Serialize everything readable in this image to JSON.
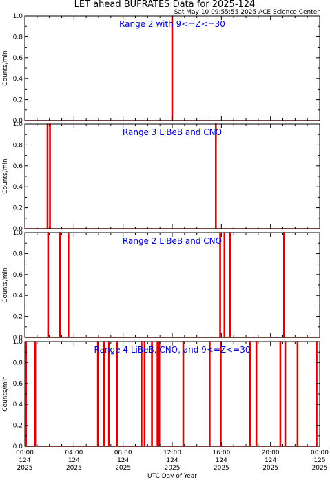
{
  "title": "LET ahead BUFRATES Data for 2025-124",
  "timestamp": "Sat May 10 09:55:55 2025 ACE Science Center",
  "xlabel": "UTC Day of Year",
  "colors": {
    "series": "#dd0000",
    "panel_label": "#0000cc",
    "axes": "#000000"
  },
  "chart_data": [
    {
      "type": "line",
      "label": "Range 2 with 9<=Z<=30",
      "ylabel": "Counts/min",
      "ylim": [
        0,
        1
      ],
      "xlim_hours": [
        0,
        24
      ],
      "y_ticks": [
        "0.0",
        "0.2",
        "0.4",
        "0.6",
        "0.8",
        "1.0"
      ],
      "spike_hours": [
        12.0
      ]
    },
    {
      "type": "line",
      "label": "Range 3 LiBeB and CNO",
      "ylabel": "Counts/min",
      "ylim": [
        0,
        1
      ],
      "xlim_hours": [
        0,
        24
      ],
      "y_ticks": [
        "0.0",
        "0.2",
        "0.4",
        "0.6",
        "0.8",
        "1.0"
      ],
      "spike_hours": [
        1.85,
        2.05,
        15.55
      ]
    },
    {
      "type": "line",
      "label": "Range 2 LiBeB and CNO",
      "ylabel": "Counts/min",
      "ylim": [
        0,
        1
      ],
      "xlim_hours": [
        0,
        24
      ],
      "y_ticks": [
        "0.0",
        "0.2",
        "0.4",
        "0.6",
        "0.8",
        "1.0"
      ],
      "spike_hours": [
        1.9,
        2.85,
        3.55,
        15.9,
        16.25,
        16.7,
        21.1
      ]
    },
    {
      "type": "line",
      "label": "Range 4 LiBeB, CNO, and 9<=Z<=30",
      "ylabel": "Counts/min",
      "ylim": [
        0,
        1
      ],
      "xlim_hours": [
        0,
        24
      ],
      "y_ticks": [
        "0.0",
        "0.2",
        "0.4",
        "0.6",
        "0.8",
        "1.0"
      ],
      "spike_hours": [
        0.1,
        0.85,
        5.95,
        6.45,
        6.85,
        7.5,
        9.5,
        9.75,
        10.35,
        10.8,
        10.95,
        12.9,
        15.05,
        15.95,
        18.35,
        18.85,
        20.8,
        21.2,
        22.2,
        23.75
      ],
      "x_ticks": [
        {
          "hour": 0,
          "time": "00:00",
          "doy": "124",
          "year": "2025"
        },
        {
          "hour": 4,
          "time": "04:00",
          "doy": "124",
          "year": "2025"
        },
        {
          "hour": 8,
          "time": "08:00",
          "doy": "124",
          "year": "2025"
        },
        {
          "hour": 12,
          "time": "12:00",
          "doy": "124",
          "year": "2025"
        },
        {
          "hour": 16,
          "time": "16:00",
          "doy": "124",
          "year": "2025"
        },
        {
          "hour": 20,
          "time": "20:00",
          "doy": "124",
          "year": "2025"
        },
        {
          "hour": 24,
          "time": "00:00",
          "doy": "125",
          "year": "2025"
        }
      ]
    }
  ]
}
